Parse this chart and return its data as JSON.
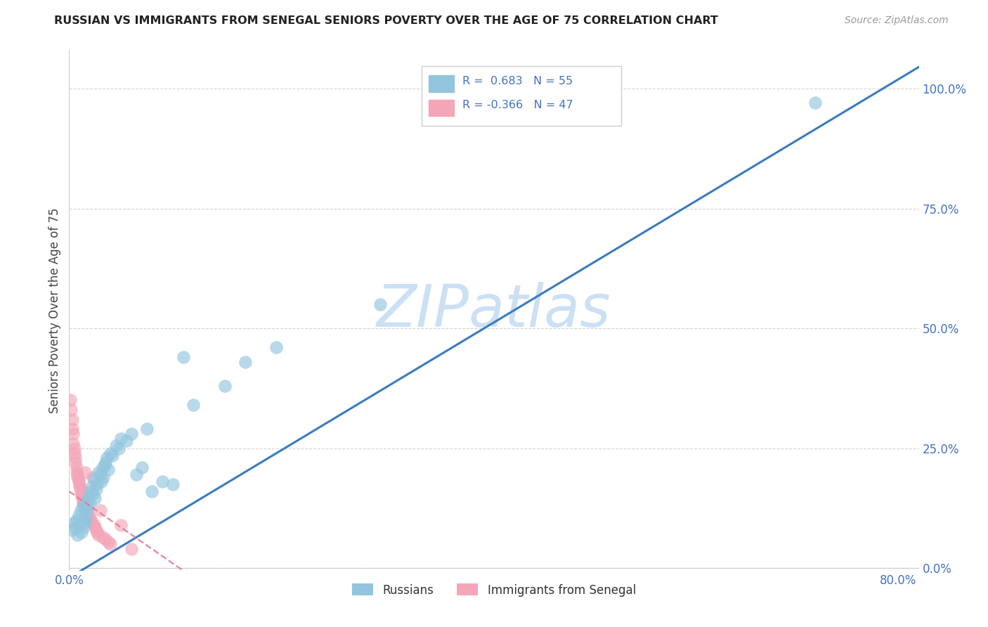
{
  "title": "RUSSIAN VS IMMIGRANTS FROM SENEGAL SENIORS POVERTY OVER THE AGE OF 75 CORRELATION CHART",
  "source": "Source: ZipAtlas.com",
  "ylabel": "Seniors Poverty Over the Age of 75",
  "xlim": [
    0.0,
    0.82
  ],
  "ylim": [
    -0.005,
    1.08
  ],
  "yticks": [
    0.0,
    0.25,
    0.5,
    0.75,
    1.0
  ],
  "ytick_labels": [
    "0.0%",
    "25.0%",
    "50.0%",
    "75.0%",
    "100.0%"
  ],
  "xticks": [
    0.0,
    0.1,
    0.2,
    0.3,
    0.4,
    0.5,
    0.6,
    0.7,
    0.8
  ],
  "xtick_labels": [
    "0.0%",
    "",
    "",
    "",
    "",
    "",
    "",
    "",
    "80.0%"
  ],
  "russian_R": 0.683,
  "russian_N": 55,
  "senegal_R": -0.366,
  "senegal_N": 47,
  "russian_color": "#92c5de",
  "senegal_color": "#f4a6b8",
  "russian_line_color": "#3a7bbf",
  "senegal_line_color": "#e8799a",
  "background_color": "#ffffff",
  "watermark_color": "#cce0f5",
  "legend_label_russian": "Russians",
  "legend_label_senegal": "Immigrants from Senegal",
  "russian_x": [
    0.003,
    0.005,
    0.006,
    0.007,
    0.008,
    0.009,
    0.01,
    0.011,
    0.012,
    0.013,
    0.013,
    0.014,
    0.015,
    0.016,
    0.016,
    0.017,
    0.018,
    0.019,
    0.02,
    0.021,
    0.022,
    0.023,
    0.024,
    0.025,
    0.026,
    0.027,
    0.028,
    0.03,
    0.031,
    0.032,
    0.033,
    0.034,
    0.035,
    0.036,
    0.038,
    0.04,
    0.042,
    0.045,
    0.048,
    0.05,
    0.055,
    0.06,
    0.065,
    0.07,
    0.075,
    0.08,
    0.09,
    0.1,
    0.11,
    0.12,
    0.15,
    0.17,
    0.2,
    0.3,
    0.72
  ],
  "russian_y": [
    0.08,
    0.095,
    0.085,
    0.1,
    0.07,
    0.11,
    0.09,
    0.12,
    0.075,
    0.13,
    0.1,
    0.085,
    0.095,
    0.105,
    0.115,
    0.14,
    0.125,
    0.15,
    0.135,
    0.16,
    0.17,
    0.155,
    0.185,
    0.145,
    0.165,
    0.175,
    0.2,
    0.195,
    0.18,
    0.21,
    0.19,
    0.215,
    0.22,
    0.23,
    0.205,
    0.24,
    0.235,
    0.255,
    0.25,
    0.27,
    0.265,
    0.28,
    0.195,
    0.21,
    0.29,
    0.16,
    0.18,
    0.175,
    0.44,
    0.34,
    0.38,
    0.43,
    0.46,
    0.55,
    0.97
  ],
  "senegal_x": [
    0.001,
    0.002,
    0.003,
    0.003,
    0.004,
    0.004,
    0.005,
    0.005,
    0.006,
    0.006,
    0.007,
    0.007,
    0.008,
    0.008,
    0.009,
    0.009,
    0.01,
    0.01,
    0.011,
    0.011,
    0.012,
    0.012,
    0.013,
    0.013,
    0.014,
    0.015,
    0.015,
    0.016,
    0.017,
    0.018,
    0.019,
    0.02,
    0.021,
    0.022,
    0.023,
    0.024,
    0.025,
    0.026,
    0.027,
    0.028,
    0.03,
    0.032,
    0.035,
    0.038,
    0.04,
    0.05,
    0.06
  ],
  "senegal_y": [
    0.35,
    0.33,
    0.31,
    0.29,
    0.28,
    0.26,
    0.25,
    0.24,
    0.23,
    0.22,
    0.21,
    0.2,
    0.195,
    0.19,
    0.185,
    0.18,
    0.175,
    0.17,
    0.165,
    0.16,
    0.155,
    0.15,
    0.145,
    0.14,
    0.135,
    0.2,
    0.13,
    0.125,
    0.12,
    0.115,
    0.11,
    0.105,
    0.1,
    0.095,
    0.19,
    0.09,
    0.085,
    0.08,
    0.075,
    0.07,
    0.12,
    0.065,
    0.06,
    0.055,
    0.05,
    0.09,
    0.04
  ]
}
